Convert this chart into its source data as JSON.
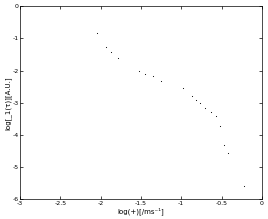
{
  "title": "",
  "xlabel": "log(+)[/ms⁻¹]",
  "ylabel": "log[_1(τ)][A.U.]",
  "xlim": [
    -3,
    0
  ],
  "ylim": [
    -6,
    0
  ],
  "xticks": [
    -3,
    -2.5,
    -2,
    -1.5,
    -1,
    -0.5,
    0
  ],
  "yticks": [
    0,
    -1,
    -2,
    -3,
    -4,
    -5,
    -6
  ],
  "xtick_labels": [
    "-3",
    "-2.5",
    "-2",
    "-1.5",
    "-1",
    "-0.5",
    "0"
  ],
  "ytick_labels": [
    "0",
    "-1",
    "-2",
    "-3",
    "-4",
    "-5",
    "-6"
  ],
  "data_x": [
    -2.05,
    -1.93,
    -1.87,
    -1.78,
    -1.52,
    -1.45,
    -1.35,
    -1.25,
    -0.98,
    -0.87,
    -0.82,
    -0.77,
    -0.7,
    -0.63,
    -0.57,
    -0.52,
    -0.47,
    -0.42,
    -0.22
  ],
  "data_y": [
    -0.82,
    -1.28,
    -1.42,
    -1.62,
    -2.02,
    -2.12,
    -2.18,
    -2.32,
    -2.55,
    -2.78,
    -2.92,
    -3.02,
    -3.15,
    -3.28,
    -3.42,
    -3.72,
    -4.32,
    -4.55,
    -5.6
  ],
  "dot_color": "#000000",
  "dot_size": 2.5,
  "background_color": "#ffffff",
  "tick_fontsize": 4.5,
  "label_fontsize": 5.0,
  "fig_width": 2.68,
  "fig_height": 2.19,
  "dpi": 100
}
